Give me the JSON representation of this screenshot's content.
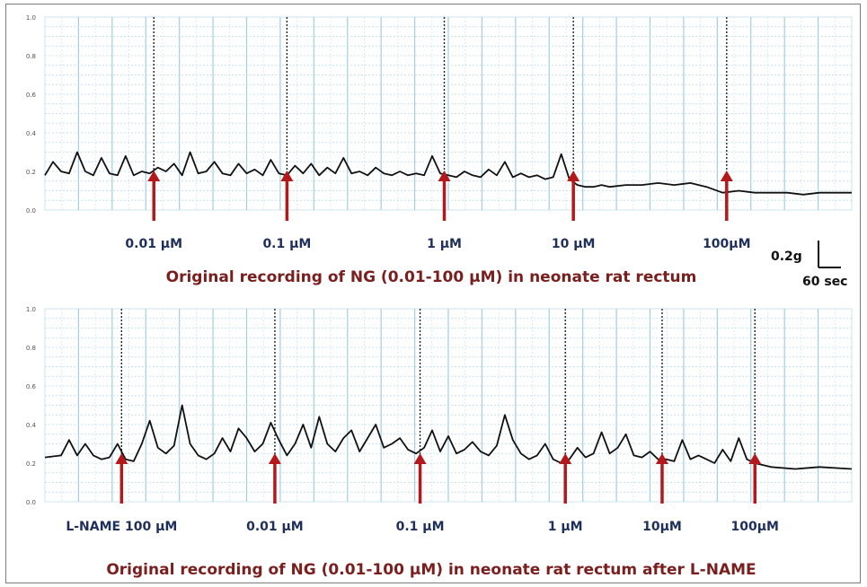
{
  "chart_data": [
    {
      "type": "line",
      "panel_id": "top",
      "title": "",
      "caption": "Original recording of NG (0.01-100 μM) in neonate rat rectum",
      "ylim": [
        0,
        1
      ],
      "yticks": [
        "0.0",
        "0.2",
        "0.4",
        "0.6",
        "0.8",
        "1.0"
      ],
      "grid": true,
      "line_color": "#111111",
      "arrow_color": "#b3191a",
      "markers": [
        {
          "label": "0.01 μM",
          "t": 0.135
        },
        {
          "label": "0.1 μM",
          "t": 0.3
        },
        {
          "label": "1 μM",
          "t": 0.495
        },
        {
          "label": "10 μM",
          "t": 0.655
        },
        {
          "label": "100μM",
          "t": 0.845
        }
      ],
      "series": [
        {
          "x": [
            0,
            0.01,
            0.02,
            0.03,
            0.04,
            0.05,
            0.06,
            0.07,
            0.08,
            0.09,
            0.1,
            0.11,
            0.12,
            0.13,
            0.14,
            0.15,
            0.16,
            0.17,
            0.18,
            0.19,
            0.2,
            0.21,
            0.22,
            0.23,
            0.24,
            0.25,
            0.26,
            0.27,
            0.28,
            0.29,
            0.3,
            0.31,
            0.32,
            0.33,
            0.34,
            0.35,
            0.36,
            0.37,
            0.38,
            0.39,
            0.4,
            0.41,
            0.42,
            0.43,
            0.44,
            0.45,
            0.46,
            0.47,
            0.48,
            0.49,
            0.5,
            0.51,
            0.52,
            0.53,
            0.54,
            0.55,
            0.56,
            0.57,
            0.58,
            0.59,
            0.6,
            0.61,
            0.62,
            0.63,
            0.64,
            0.65,
            0.66,
            0.67,
            0.68,
            0.69,
            0.7,
            0.72,
            0.74,
            0.76,
            0.78,
            0.8,
            0.82,
            0.84,
            0.86,
            0.88,
            0.9,
            0.92,
            0.94,
            0.96,
            0.98,
            1.0
          ],
          "y": [
            0.18,
            0.25,
            0.2,
            0.19,
            0.3,
            0.2,
            0.18,
            0.27,
            0.19,
            0.18,
            0.28,
            0.18,
            0.2,
            0.19,
            0.22,
            0.2,
            0.24,
            0.18,
            0.3,
            0.19,
            0.2,
            0.25,
            0.19,
            0.18,
            0.24,
            0.19,
            0.21,
            0.18,
            0.26,
            0.19,
            0.18,
            0.23,
            0.19,
            0.24,
            0.18,
            0.22,
            0.19,
            0.27,
            0.19,
            0.2,
            0.18,
            0.22,
            0.19,
            0.18,
            0.2,
            0.18,
            0.19,
            0.18,
            0.28,
            0.19,
            0.18,
            0.17,
            0.2,
            0.18,
            0.17,
            0.21,
            0.18,
            0.25,
            0.17,
            0.19,
            0.17,
            0.18,
            0.16,
            0.17,
            0.29,
            0.16,
            0.13,
            0.12,
            0.12,
            0.13,
            0.12,
            0.13,
            0.13,
            0.14,
            0.13,
            0.14,
            0.12,
            0.09,
            0.1,
            0.09,
            0.09,
            0.09,
            0.08,
            0.09,
            0.09,
            0.09
          ]
        }
      ]
    },
    {
      "type": "line",
      "panel_id": "bottom",
      "title": "",
      "caption": "Original recording of NG (0.01-100 μM) in neonate rat rectum after L-NAME",
      "ylim": [
        0,
        1
      ],
      "yticks": [
        "0.0",
        "0.2",
        "0.4",
        "0.6",
        "0.8",
        "1.0"
      ],
      "grid": true,
      "line_color": "#111111",
      "arrow_color": "#b3191a",
      "markers": [
        {
          "label": "L-NAME 100 μM",
          "t": 0.095
        },
        {
          "label": "0.01 μM",
          "t": 0.285
        },
        {
          "label": "0.1 μM",
          "t": 0.465
        },
        {
          "label": "1 μM",
          "t": 0.645
        },
        {
          "label": "10μM",
          "t": 0.765
        },
        {
          "label": "100μM",
          "t": 0.88
        }
      ],
      "series": [
        {
          "x": [
            0,
            0.02,
            0.03,
            0.04,
            0.05,
            0.06,
            0.07,
            0.08,
            0.09,
            0.1,
            0.11,
            0.12,
            0.13,
            0.14,
            0.15,
            0.16,
            0.17,
            0.18,
            0.19,
            0.2,
            0.21,
            0.22,
            0.23,
            0.24,
            0.25,
            0.26,
            0.27,
            0.28,
            0.29,
            0.3,
            0.31,
            0.32,
            0.33,
            0.34,
            0.35,
            0.36,
            0.37,
            0.38,
            0.39,
            0.4,
            0.41,
            0.42,
            0.43,
            0.44,
            0.45,
            0.46,
            0.47,
            0.48,
            0.49,
            0.5,
            0.51,
            0.52,
            0.53,
            0.54,
            0.55,
            0.56,
            0.57,
            0.58,
            0.59,
            0.6,
            0.61,
            0.62,
            0.63,
            0.64,
            0.65,
            0.66,
            0.67,
            0.68,
            0.69,
            0.7,
            0.71,
            0.72,
            0.73,
            0.74,
            0.75,
            0.76,
            0.77,
            0.78,
            0.79,
            0.8,
            0.81,
            0.82,
            0.83,
            0.84,
            0.85,
            0.86,
            0.87,
            0.88,
            0.9,
            0.93,
            0.96,
            1.0
          ],
          "y": [
            0.23,
            0.24,
            0.32,
            0.24,
            0.3,
            0.24,
            0.22,
            0.23,
            0.3,
            0.22,
            0.21,
            0.3,
            0.42,
            0.28,
            0.25,
            0.29,
            0.5,
            0.3,
            0.24,
            0.22,
            0.25,
            0.33,
            0.26,
            0.38,
            0.33,
            0.26,
            0.3,
            0.41,
            0.32,
            0.24,
            0.3,
            0.4,
            0.28,
            0.44,
            0.3,
            0.26,
            0.33,
            0.37,
            0.26,
            0.33,
            0.4,
            0.28,
            0.3,
            0.33,
            0.27,
            0.25,
            0.28,
            0.37,
            0.26,
            0.34,
            0.25,
            0.27,
            0.31,
            0.26,
            0.24,
            0.29,
            0.45,
            0.32,
            0.25,
            0.22,
            0.24,
            0.3,
            0.22,
            0.2,
            0.22,
            0.28,
            0.23,
            0.25,
            0.36,
            0.25,
            0.28,
            0.35,
            0.24,
            0.23,
            0.26,
            0.22,
            0.22,
            0.21,
            0.32,
            0.22,
            0.24,
            0.22,
            0.2,
            0.27,
            0.21,
            0.33,
            0.22,
            0.2,
            0.18,
            0.17,
            0.18,
            0.17
          ]
        }
      ]
    }
  ],
  "scale_bar": {
    "force_label": "0.2g",
    "time_label": "60 sec"
  }
}
